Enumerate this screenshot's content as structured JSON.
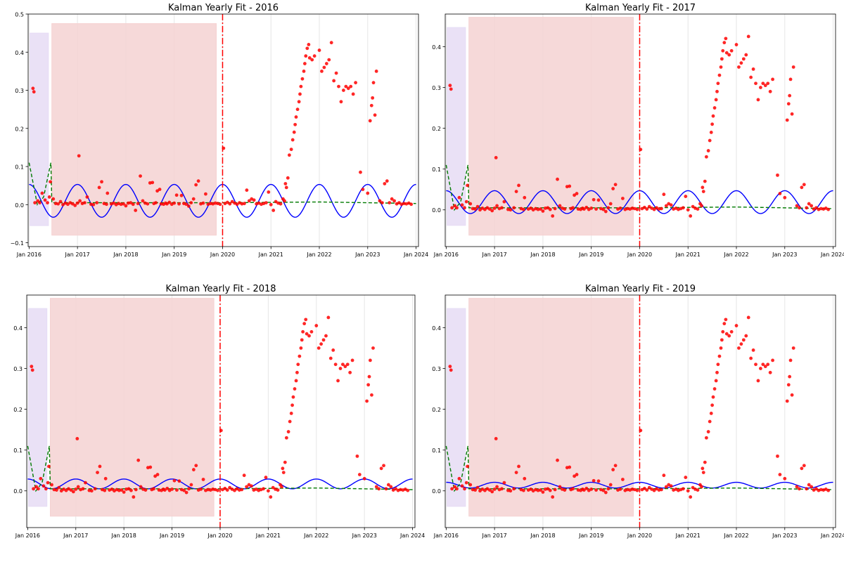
{
  "chart_data": [
    {
      "type": "scatter",
      "title": "Kalman Yearly Fit - 2016",
      "xlabel": "",
      "ylabel": "",
      "xlim": [
        2015.98,
        2024.05
      ],
      "ylim": [
        -0.11,
        0.5
      ],
      "xticks": [
        2016,
        2017,
        2018,
        2019,
        2020,
        2021,
        2022,
        2023,
        2024
      ],
      "xtick_labels": [
        "Jan 2016",
        "Jan 2017",
        "Jan 2018",
        "Jan 2019",
        "Jan 2020",
        "Jan 2021",
        "Jan 2022",
        "Jan 2023",
        "Jan 2024"
      ],
      "yticks": [
        -0.1,
        0.0,
        0.1,
        0.2,
        0.3,
        0.4,
        0.5
      ],
      "ytick_labels": [
        "−0.1",
        "0.0",
        "0.1",
        "0.2",
        "0.3",
        "0.4",
        "0.5"
      ],
      "grid": "vertical",
      "cutoff_x": 2020.0,
      "shaded_regions": [
        {
          "x": [
            2016.02,
            2016.4
          ],
          "y": [
            -0.055,
            0.45
          ],
          "color": "#e6dcf5"
        },
        {
          "x": [
            2016.47,
            2019.87
          ],
          "y": [
            -0.08,
            0.475
          ],
          "color": "#f5d2d2"
        }
      ],
      "seasonal": {
        "amplitude": 0.043,
        "offset": 0.01,
        "phase": 0.25
      },
      "trend": {
        "points": [
          [
            2016.0,
            0.11
          ],
          [
            2016.17,
            0.0
          ],
          [
            2016.3,
            0.02
          ],
          [
            2016.45,
            0.11
          ],
          [
            2016.47,
            0.005
          ],
          [
            2018.0,
            0.005
          ],
          [
            2020.0,
            0.005
          ],
          [
            2022.0,
            0.007
          ],
          [
            2024.0,
            0.003
          ]
        ]
      },
      "scatter_points": "shared"
    },
    {
      "type": "scatter",
      "title": "Kalman Yearly Fit - 2017",
      "xlabel": "",
      "ylabel": "",
      "xlim": [
        2015.98,
        2024.05
      ],
      "ylim": [
        -0.09,
        0.48
      ],
      "xticks": [
        2016,
        2017,
        2018,
        2019,
        2020,
        2021,
        2022,
        2023,
        2024
      ],
      "xtick_labels": [
        "Jan 2016",
        "Jan 2017",
        "Jan 2018",
        "Jan 2019",
        "Jan 2020",
        "Jan 2021",
        "Jan 2022",
        "Jan 2023",
        "Jan 2024"
      ],
      "yticks": [
        0.0,
        0.1,
        0.2,
        0.3,
        0.4
      ],
      "ytick_labels": [
        "0.0",
        "0.1",
        "0.2",
        "0.3",
        "0.4"
      ],
      "grid": "vertical",
      "cutoff_x": 2020.0,
      "shaded_regions": [
        {
          "x": [
            2016.02,
            2016.4
          ],
          "y": [
            -0.038,
            0.447
          ],
          "color": "#e6dcf5"
        },
        {
          "x": [
            2016.47,
            2019.87
          ],
          "y": [
            -0.062,
            0.472
          ],
          "color": "#f5d2d2"
        }
      ],
      "seasonal": {
        "amplitude": 0.028,
        "offset": 0.019,
        "phase": 0.25
      },
      "trend": {
        "points": [
          [
            2016.0,
            0.11
          ],
          [
            2016.17,
            0.0
          ],
          [
            2016.3,
            0.02
          ],
          [
            2016.45,
            0.11
          ],
          [
            2016.47,
            0.005
          ],
          [
            2018.0,
            0.005
          ],
          [
            2020.0,
            0.005
          ],
          [
            2022.0,
            0.007
          ],
          [
            2024.0,
            0.003
          ]
        ]
      },
      "scatter_points": "shared"
    },
    {
      "type": "scatter",
      "title": "Kalman Yearly Fit - 2018",
      "xlabel": "",
      "ylabel": "",
      "xlim": [
        2015.98,
        2024.05
      ],
      "ylim": [
        -0.09,
        0.48
      ],
      "xticks": [
        2016,
        2017,
        2018,
        2019,
        2020,
        2021,
        2022,
        2023,
        2024
      ],
      "xtick_labels": [
        "Jan 2016",
        "Jan 2017",
        "Jan 2018",
        "Jan 2019",
        "Jan 2020",
        "Jan 2021",
        "Jan 2022",
        "Jan 2023",
        "Jan 2024"
      ],
      "yticks": [
        0.0,
        0.1,
        0.2,
        0.3,
        0.4
      ],
      "ytick_labels": [
        "0.0",
        "0.1",
        "0.2",
        "0.3",
        "0.4"
      ],
      "grid": "vertical",
      "cutoff_x": 2020.0,
      "shaded_regions": [
        {
          "x": [
            2016.02,
            2016.4
          ],
          "y": [
            -0.038,
            0.447
          ],
          "color": "#e6dcf5"
        },
        {
          "x": [
            2016.47,
            2019.87
          ],
          "y": [
            -0.062,
            0.472
          ],
          "color": "#f5d2d2"
        }
      ],
      "seasonal": {
        "amplitude": 0.012,
        "offset": 0.017,
        "phase": 0.25
      },
      "trend": {
        "points": [
          [
            2016.0,
            0.11
          ],
          [
            2016.17,
            0.0
          ],
          [
            2016.3,
            0.02
          ],
          [
            2016.45,
            0.11
          ],
          [
            2016.47,
            0.005
          ],
          [
            2018.0,
            0.005
          ],
          [
            2020.0,
            0.005
          ],
          [
            2022.0,
            0.007
          ],
          [
            2024.0,
            0.003
          ]
        ]
      },
      "scatter_points": "shared"
    },
    {
      "type": "scatter",
      "title": "Kalman Yearly Fit - 2019",
      "xlabel": "",
      "ylabel": "",
      "xlim": [
        2015.98,
        2024.05
      ],
      "ylim": [
        -0.09,
        0.48
      ],
      "xticks": [
        2016,
        2017,
        2018,
        2019,
        2020,
        2021,
        2022,
        2023,
        2024
      ],
      "xtick_labels": [
        "Jan 2016",
        "Jan 2017",
        "Jan 2018",
        "Jan 2019",
        "Jan 2020",
        "Jan 2021",
        "Jan 2022",
        "Jan 2023",
        "Jan 2024"
      ],
      "yticks": [
        0.0,
        0.1,
        0.2,
        0.3,
        0.4
      ],
      "ytick_labels": [
        "0.0",
        "0.1",
        "0.2",
        "0.3",
        "0.4"
      ],
      "grid": "vertical",
      "cutoff_x": 2020.0,
      "shaded_regions": [
        {
          "x": [
            2016.02,
            2016.4
          ],
          "y": [
            -0.038,
            0.447
          ],
          "color": "#e6dcf5"
        },
        {
          "x": [
            2016.47,
            2019.87
          ],
          "y": [
            -0.062,
            0.472
          ],
          "color": "#f5d2d2"
        }
      ],
      "seasonal": {
        "amplitude": 0.007,
        "offset": 0.014,
        "phase": 0.25
      },
      "trend": {
        "points": [
          [
            2016.0,
            0.11
          ],
          [
            2016.17,
            0.0
          ],
          [
            2016.3,
            0.02
          ],
          [
            2016.45,
            0.11
          ],
          [
            2016.47,
            0.005
          ],
          [
            2018.0,
            0.005
          ],
          [
            2020.0,
            0.005
          ],
          [
            2022.0,
            0.007
          ],
          [
            2024.0,
            0.003
          ]
        ]
      },
      "scatter_points": "shared"
    }
  ],
  "scatter_points": [
    [
      2016.08,
      0.305
    ],
    [
      2016.1,
      0.296
    ],
    [
      2016.12,
      0.005
    ],
    [
      2016.18,
      0.01
    ],
    [
      2016.22,
      0.005
    ],
    [
      2016.27,
      0.03
    ],
    [
      2016.33,
      0.012
    ],
    [
      2016.38,
      0.005
    ],
    [
      2016.42,
      0.02
    ],
    [
      2016.44,
      0.06
    ],
    [
      2016.5,
      0.015
    ],
    [
      2016.55,
      0.003
    ],
    [
      2016.6,
      0.002
    ],
    [
      2016.65,
      0.008
    ],
    [
      2016.7,
      0.0
    ],
    [
      2016.75,
      0.004
    ],
    [
      2016.8,
      0.001
    ],
    [
      2016.85,
      0.005
    ],
    [
      2016.9,
      0.002
    ],
    [
      2016.95,
      -0.002
    ],
    [
      2017.0,
      0.004
    ],
    [
      2017.03,
      0.128
    ],
    [
      2017.05,
      0.01
    ],
    [
      2017.1,
      0.003
    ],
    [
      2017.15,
      0.005
    ],
    [
      2017.2,
      0.02
    ],
    [
      2017.28,
      0.001
    ],
    [
      2017.33,
      0.0
    ],
    [
      2017.4,
      0.005
    ],
    [
      2017.45,
      0.045
    ],
    [
      2017.5,
      0.06
    ],
    [
      2017.55,
      0.003
    ],
    [
      2017.6,
      0.001
    ],
    [
      2017.62,
      0.03
    ],
    [
      2017.7,
      0.002
    ],
    [
      2017.75,
      0.004
    ],
    [
      2017.8,
      0.0
    ],
    [
      2017.85,
      0.003
    ],
    [
      2017.9,
      0.001
    ],
    [
      2017.95,
      0.002
    ],
    [
      2018.0,
      -0.003
    ],
    [
      2018.05,
      0.004
    ],
    [
      2018.1,
      0.005
    ],
    [
      2018.15,
      0.001
    ],
    [
      2018.2,
      -0.015
    ],
    [
      2018.25,
      0.003
    ],
    [
      2018.3,
      0.075
    ],
    [
      2018.35,
      0.01
    ],
    [
      2018.4,
      0.004
    ],
    [
      2018.45,
      0.002
    ],
    [
      2018.5,
      0.057
    ],
    [
      2018.55,
      0.058
    ],
    [
      2018.58,
      0.003
    ],
    [
      2018.62,
      0.005
    ],
    [
      2018.65,
      0.036
    ],
    [
      2018.7,
      0.04
    ],
    [
      2018.73,
      0.002
    ],
    [
      2018.78,
      0.001
    ],
    [
      2018.82,
      0.004
    ],
    [
      2018.85,
      0.002
    ],
    [
      2018.9,
      0.006
    ],
    [
      2018.95,
      0.001
    ],
    [
      2019.0,
      0.004
    ],
    [
      2019.05,
      0.025
    ],
    [
      2019.1,
      0.002
    ],
    [
      2019.15,
      0.024
    ],
    [
      2019.2,
      0.003
    ],
    [
      2019.25,
      0.001
    ],
    [
      2019.3,
      -0.004
    ],
    [
      2019.35,
      0.005
    ],
    [
      2019.4,
      0.015
    ],
    [
      2019.45,
      0.052
    ],
    [
      2019.5,
      0.062
    ],
    [
      2019.55,
      0.002
    ],
    [
      2019.6,
      0.004
    ],
    [
      2019.65,
      0.028
    ],
    [
      2019.7,
      0.001
    ],
    [
      2019.75,
      0.003
    ],
    [
      2019.8,
      0.002
    ],
    [
      2019.85,
      0.004
    ],
    [
      2019.9,
      0.003
    ],
    [
      2019.95,
      0.001
    ],
    [
      2020.02,
      0.148
    ],
    [
      2020.05,
      0.003
    ],
    [
      2020.1,
      0.006
    ],
    [
      2020.15,
      0.002
    ],
    [
      2020.2,
      0.008
    ],
    [
      2020.25,
      0.004
    ],
    [
      2020.3,
      0.001
    ],
    [
      2020.35,
      0.005
    ],
    [
      2020.4,
      0.002
    ],
    [
      2020.45,
      0.003
    ],
    [
      2020.5,
      0.038
    ],
    [
      2020.55,
      0.01
    ],
    [
      2020.6,
      0.015
    ],
    [
      2020.65,
      0.012
    ],
    [
      2020.7,
      0.002
    ],
    [
      2020.75,
      0.004
    ],
    [
      2020.8,
      0.001
    ],
    [
      2020.85,
      0.003
    ],
    [
      2020.9,
      0.005
    ],
    [
      2020.95,
      0.033
    ],
    [
      2021.0,
      0.0
    ],
    [
      2021.05,
      -0.015
    ],
    [
      2021.1,
      0.008
    ],
    [
      2021.15,
      0.004
    ],
    [
      2021.2,
      0.002
    ],
    [
      2021.25,
      0.015
    ],
    [
      2021.28,
      0.01
    ],
    [
      2021.3,
      0.055
    ],
    [
      2021.32,
      0.045
    ],
    [
      2021.35,
      0.07
    ],
    [
      2021.38,
      0.13
    ],
    [
      2021.42,
      0.145
    ],
    [
      2021.45,
      0.17
    ],
    [
      2021.48,
      0.19
    ],
    [
      2021.5,
      0.21
    ],
    [
      2021.52,
      0.23
    ],
    [
      2021.55,
      0.25
    ],
    [
      2021.58,
      0.27
    ],
    [
      2021.6,
      0.29
    ],
    [
      2021.62,
      0.31
    ],
    [
      2021.65,
      0.33
    ],
    [
      2021.68,
      0.35
    ],
    [
      2021.7,
      0.37
    ],
    [
      2021.72,
      0.39
    ],
    [
      2021.75,
      0.41
    ],
    [
      2021.78,
      0.42
    ],
    [
      2021.8,
      0.385
    ],
    [
      2021.85,
      0.38
    ],
    [
      2021.9,
      0.39
    ],
    [
      2022.0,
      0.405
    ],
    [
      2022.05,
      0.35
    ],
    [
      2022.1,
      0.36
    ],
    [
      2022.15,
      0.37
    ],
    [
      2022.2,
      0.38
    ],
    [
      2022.25,
      0.425
    ],
    [
      2022.3,
      0.325
    ],
    [
      2022.35,
      0.345
    ],
    [
      2022.4,
      0.31
    ],
    [
      2022.45,
      0.27
    ],
    [
      2022.5,
      0.3
    ],
    [
      2022.55,
      0.31
    ],
    [
      2022.6,
      0.305
    ],
    [
      2022.65,
      0.31
    ],
    [
      2022.7,
      0.29
    ],
    [
      2022.75,
      0.32
    ],
    [
      2022.85,
      0.085
    ],
    [
      2022.9,
      0.04
    ],
    [
      2023.0,
      0.03
    ],
    [
      2023.05,
      0.22
    ],
    [
      2023.08,
      0.26
    ],
    [
      2023.1,
      0.28
    ],
    [
      2023.12,
      0.32
    ],
    [
      2023.15,
      0.235
    ],
    [
      2023.18,
      0.35
    ],
    [
      2023.25,
      0.01
    ],
    [
      2023.3,
      0.005
    ],
    [
      2023.35,
      0.055
    ],
    [
      2023.4,
      0.062
    ],
    [
      2023.45,
      0.005
    ],
    [
      2023.5,
      0.015
    ],
    [
      2023.55,
      0.01
    ],
    [
      2023.6,
      0.002
    ],
    [
      2023.65,
      0.005
    ],
    [
      2023.7,
      0.001
    ],
    [
      2023.75,
      0.003
    ],
    [
      2023.8,
      0.002
    ],
    [
      2023.85,
      0.004
    ],
    [
      2023.9,
      0.001
    ]
  ]
}
